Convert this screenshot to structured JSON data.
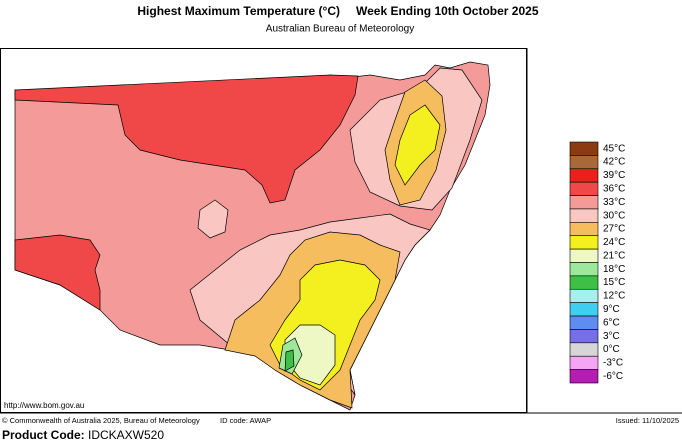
{
  "header": {
    "title": "Highest Maximum Temperature (°C)",
    "period": "Week Ending 10th October 2025",
    "subtitle": "Australian Bureau of Meteorology"
  },
  "legend": {
    "items": [
      {
        "label": "45°C",
        "color": "#8b3a12"
      },
      {
        "label": "42°C",
        "color": "#a8683a"
      },
      {
        "label": "39°C",
        "color": "#e3231c"
      },
      {
        "label": "36°C",
        "color": "#f04848"
      },
      {
        "label": "33°C",
        "color": "#f49a98"
      },
      {
        "label": "30°C",
        "color": "#f9c6c2"
      },
      {
        "label": "27°C",
        "color": "#f6bd5e"
      },
      {
        "label": "24°C",
        "color": "#f4ef1f"
      },
      {
        "label": "21°C",
        "color": "#eef8c4"
      },
      {
        "label": "18°C",
        "color": "#9de89a"
      },
      {
        "label": "15°C",
        "color": "#3fbf45"
      },
      {
        "label": "12°C",
        "color": "#a4f0ec"
      },
      {
        "label": "9°C",
        "color": "#3fcdf0"
      },
      {
        "label": "6°C",
        "color": "#5d8df0"
      },
      {
        "label": "3°C",
        "color": "#7670e6"
      },
      {
        "label": "0°C",
        "color": "#d6d6d6"
      },
      {
        "label": "-3°C",
        "color": "#f4a6f4"
      },
      {
        "label": "-6°C",
        "color": "#b41eb4"
      }
    ]
  },
  "footer": {
    "url": "http://www.bom.gov.au",
    "copyright": "© Commonwealth of Australia 2025, Bureau of Meteorology",
    "id_code": "ID code: AWAP",
    "issued": "Issued: 11/10/2025",
    "product_code_label": "Product Code:",
    "product_code": "IDCKAXW520"
  }
}
